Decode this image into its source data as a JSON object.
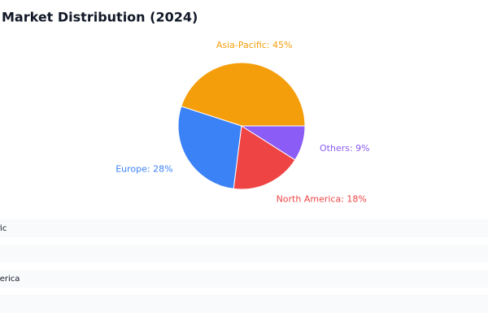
{
  "chart_data": {
    "type": "pie",
    "title": "Market Distribution (2024)",
    "categories": [
      "Asia-Pacific",
      "Europe",
      "North America",
      "Others"
    ],
    "values": [
      45,
      28,
      18,
      9
    ],
    "value_labels": [
      "Asia-Pacific: 45%",
      "Europe: 28%",
      "North America: 18%",
      "Others: 9%"
    ],
    "colors": [
      "#f59e0b",
      "#3b82f6",
      "#ef4444",
      "#8b5cf6"
    ]
  }
}
